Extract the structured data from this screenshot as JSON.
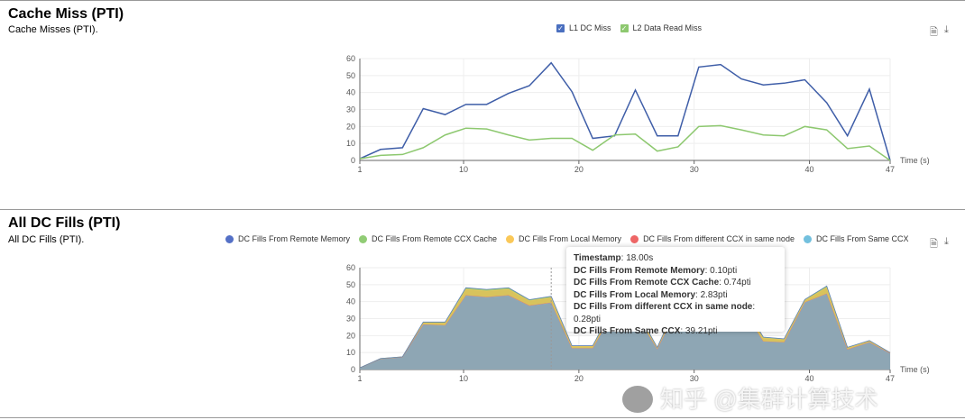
{
  "section1": {
    "title": "Cache Miss (PTI)",
    "subtitle": "Cache Misses (PTI).",
    "icons": [
      "document-icon",
      "download-icon"
    ]
  },
  "section2": {
    "title": "All DC Fills (PTI)",
    "subtitle": "All DC Fills (PTI).",
    "icons": [
      "document-icon",
      "download-icon"
    ]
  },
  "chart_data": [
    {
      "type": "line",
      "xlabel": "Time (s)",
      "xlim": [
        1,
        47
      ],
      "ylim": [
        0,
        60
      ],
      "yticks": [
        0,
        10,
        20,
        30,
        40,
        50,
        60
      ],
      "xticks": [
        1,
        10,
        20,
        30,
        40,
        47
      ],
      "grid": true,
      "legend": "top",
      "x": [
        1,
        2.8,
        4.7,
        6.5,
        8.4,
        10.2,
        12,
        13.9,
        15.7,
        17.6,
        19.4,
        21.2,
        23.1,
        24.9,
        26.8,
        28.6,
        30.4,
        32.3,
        34.1,
        36,
        37.8,
        39.6,
        41.5,
        43.3,
        45.2,
        47
      ],
      "series": [
        {
          "name": "L1 DC Miss",
          "color": "#3f5ea8",
          "values": [
            1,
            6.5,
            7.5,
            30.5,
            27,
            33,
            33,
            39.5,
            44,
            57.5,
            40.5,
            13,
            14.5,
            41.5,
            14.5,
            14.5,
            55,
            56.5,
            48,
            44.5,
            45.5,
            47.5,
            34,
            14.5,
            42,
            0
          ]
        },
        {
          "name": "L2 Data Read Miss",
          "color": "#8dc86f",
          "values": [
            1,
            3,
            3.5,
            7.5,
            15,
            19,
            18.5,
            15,
            12,
            13,
            13,
            6,
            15,
            15.5,
            5.5,
            8,
            20,
            20.5,
            18,
            15,
            14.5,
            20,
            18,
            7,
            8.5,
            0
          ]
        }
      ]
    },
    {
      "type": "area",
      "stacked": true,
      "xlabel": "Time (s)",
      "xlim": [
        1,
        47
      ],
      "ylim": [
        0,
        60
      ],
      "yticks": [
        0,
        10,
        20,
        30,
        40,
        50,
        60
      ],
      "xticks": [
        1,
        10,
        20,
        30,
        40,
        47
      ],
      "grid": true,
      "legend": "top",
      "x": [
        1,
        2.8,
        4.7,
        6.5,
        8.4,
        10.2,
        12,
        13.9,
        15.7,
        17.6,
        19.4,
        21.2,
        23.1,
        24.9,
        26.8,
        28.6,
        30.4,
        32.3,
        34.1,
        36,
        37.8,
        39.6,
        41.5,
        43.3,
        45.2,
        47
      ],
      "series": [
        {
          "name": "DC Fills From Same CCX",
          "color": "#73c0de",
          "fill": "#8ea6b4",
          "values": [
            0.9,
            6.3,
            7.3,
            26.5,
            26,
            43.5,
            42.5,
            43.5,
            37.5,
            39.21,
            12.5,
            12.5,
            35,
            33,
            12,
            37,
            39,
            40.5,
            37,
            16.5,
            16,
            39.5,
            44.5,
            11.8,
            16,
            9.6
          ]
        },
        {
          "name": "DC Fills From different CCX in same node",
          "color": "#ee6666",
          "fill": "#b9a27a",
          "values": [
            0.02,
            0.03,
            0.03,
            0.1,
            0.1,
            0.3,
            0.3,
            0.3,
            0.25,
            0.28,
            0.1,
            0.1,
            0.25,
            0.25,
            0.1,
            0.25,
            0.25,
            0.3,
            0.25,
            0.15,
            0.15,
            0.2,
            0.3,
            0.1,
            0.1,
            0.03
          ]
        },
        {
          "name": "DC Fills From Local Memory",
          "color": "#fac858",
          "fill": "#d8c35c",
          "values": [
            0.05,
            0.1,
            0.1,
            1.0,
            1.4,
            3.5,
            3.5,
            3.5,
            2.8,
            2.83,
            1.2,
            1.2,
            2.2,
            2.2,
            0.7,
            2.2,
            2.2,
            2.6,
            2.2,
            2,
            1.6,
            1.2,
            3.6,
            1,
            0.8,
            0.3
          ]
        },
        {
          "name": "DC Fills From Remote CCX Cache",
          "color": "#91cc75",
          "fill": "#a9c96e",
          "values": [
            0.03,
            0.05,
            0.05,
            0.3,
            0.4,
            0.8,
            0.8,
            0.8,
            0.5,
            0.74,
            0.2,
            0.2,
            0.6,
            0.6,
            0.2,
            0.6,
            0.6,
            0.7,
            0.6,
            0.4,
            0.3,
            0.3,
            0.7,
            0.15,
            0.15,
            0.05
          ]
        },
        {
          "name": "DC Fills From Remote Memory",
          "color": "#5470c6",
          "fill": "#8aa07a",
          "values": [
            0.02,
            0.03,
            0.03,
            0.08,
            0.08,
            0.1,
            0.1,
            0.1,
            0.1,
            0.1,
            0.05,
            0.05,
            0.1,
            0.1,
            0.05,
            0.1,
            0.1,
            0.1,
            0.1,
            0.06,
            0.06,
            0.08,
            0.1,
            0.04,
            0.04,
            0.02
          ]
        }
      ],
      "legend_order": [
        "DC Fills From Remote Memory",
        "DC Fills From Remote CCX Cache",
        "DC Fills From Local Memory",
        "DC Fills From different CCX in same node",
        "DC Fills From Same CCX"
      ],
      "tooltip": {
        "timestamp_label": "Timestamp",
        "timestamp": "18.00s",
        "rows": [
          {
            "label": "DC Fills From Remote Memory",
            "value": "0.10pti"
          },
          {
            "label": "DC Fills From Remote CCX Cache",
            "value": "0.74pti"
          },
          {
            "label": "DC Fills From Local Memory",
            "value": "2.83pti"
          },
          {
            "label": "DC Fills From different CCX in same node",
            "value": "0.28pti"
          },
          {
            "label": "DC Fills From Same CCX",
            "value": "39.21pti"
          }
        ]
      }
    }
  ],
  "watermark": "知乎 @集群计算技术"
}
